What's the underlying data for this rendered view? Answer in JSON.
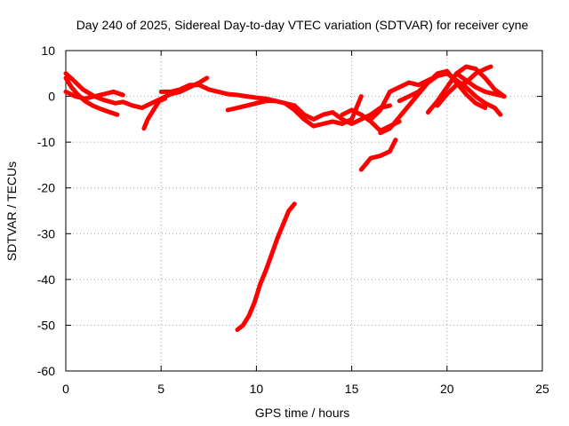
{
  "chart_data": {
    "type": "line",
    "title": "Day 240 of 2025, Sidereal Day-to-day VTEC variation (SDTVAR) for receiver cyne",
    "xlabel": "GPS time / hours",
    "ylabel": "SDTVAR / TECUs",
    "xlim": [
      0,
      25
    ],
    "ylim": [
      -60,
      10
    ],
    "xticks": [
      0,
      5,
      10,
      15,
      20,
      25
    ],
    "yticks": [
      -60,
      -50,
      -40,
      -30,
      -20,
      -10,
      0,
      10
    ],
    "grid": true,
    "color": "#ff0000",
    "series": [
      {
        "name": "s1",
        "x": [
          0.0,
          0.3,
          0.6,
          1.0,
          1.4,
          1.8,
          2.2,
          2.7
        ],
        "y": [
          4.0,
          2.0,
          0.5,
          -1.0,
          -2.0,
          -2.7,
          -3.3,
          -4.0
        ]
      },
      {
        "name": "s2",
        "x": [
          0.0,
          0.4,
          0.9,
          1.5,
          2.0,
          2.6,
          3.0,
          3.5,
          4.0,
          4.5,
          5.0,
          5.5
        ],
        "y": [
          5.0,
          3.5,
          1.5,
          0.0,
          -0.8,
          -1.5,
          -1.2,
          -2.0,
          -2.5,
          -1.5,
          -0.5,
          0.5
        ]
      },
      {
        "name": "s3",
        "x": [
          0.0,
          0.5,
          1.0,
          1.5,
          2.0,
          2.5,
          3.0
        ],
        "y": [
          1.0,
          0.0,
          -0.5,
          0.0,
          0.5,
          1.0,
          0.3
        ]
      },
      {
        "name": "s4",
        "x": [
          4.1,
          4.3,
          4.6,
          4.9,
          5.2
        ],
        "y": [
          -7.0,
          -5.0,
          -3.0,
          -1.0,
          -0.5
        ]
      },
      {
        "name": "s5",
        "x": [
          5.0,
          5.5,
          6.0,
          6.5,
          7.0,
          7.5,
          8.0,
          8.5,
          9.0,
          9.5,
          10.0,
          10.5,
          11.0,
          11.5,
          12.0
        ],
        "y": [
          1.0,
          1.0,
          1.5,
          2.5,
          2.5,
          1.5,
          1.0,
          0.5,
          0.3,
          0.0,
          -0.3,
          -0.5,
          -1.0,
          -1.5,
          -2.0
        ]
      },
      {
        "name": "s6",
        "x": [
          5.5,
          6.0,
          6.5,
          7.0,
          7.4
        ],
        "y": [
          0.5,
          1.0,
          2.0,
          3.0,
          4.0
        ]
      },
      {
        "name": "s7",
        "x": [
          8.5,
          9.0,
          9.5,
          10.0,
          10.5,
          11.0
        ],
        "y": [
          -3.0,
          -2.5,
          -2.0,
          -1.5,
          -1.0,
          -1.0
        ]
      },
      {
        "name": "s8",
        "x": [
          9.0,
          9.3,
          9.6,
          9.9,
          10.2,
          10.5,
          10.8,
          11.1,
          11.4,
          11.7,
          12.0
        ],
        "y": [
          -51.0,
          -50.0,
          -48.0,
          -45.0,
          -41.0,
          -38.0,
          -34.5,
          -31.0,
          -28.0,
          -25.0,
          -23.5
        ]
      },
      {
        "name": "s9",
        "x": [
          11.5,
          12.0,
          12.5,
          13.0,
          13.5,
          14.0,
          14.5,
          15.0,
          15.5
        ],
        "y": [
          -1.5,
          -3.0,
          -5.0,
          -6.5,
          -6.0,
          -5.5,
          -6.0,
          -5.0,
          0.0
        ]
      },
      {
        "name": "s10",
        "x": [
          12.0,
          12.5,
          13.0,
          13.5,
          14.0,
          14.5,
          15.0,
          15.5,
          16.0,
          16.5,
          17.0
        ],
        "y": [
          -2.0,
          -4.0,
          -5.0,
          -4.0,
          -3.5,
          -5.0,
          -6.0,
          -5.0,
          -4.0,
          -2.5,
          -2.0
        ]
      },
      {
        "name": "s11",
        "x": [
          14.5,
          15.0,
          15.5,
          16.0,
          16.5,
          17.0,
          17.5
        ],
        "y": [
          -4.0,
          -3.0,
          -4.0,
          -5.5,
          -7.5,
          -6.5,
          -5.5
        ]
      },
      {
        "name": "s12",
        "x": [
          15.5,
          16.0,
          16.5,
          17.0,
          17.3
        ],
        "y": [
          -16.0,
          -13.5,
          -13.0,
          -12.0,
          -9.5
        ]
      },
      {
        "name": "s13",
        "x": [
          16.5,
          17.0,
          17.5,
          18.0,
          18.5,
          19.0,
          19.5,
          20.0,
          20.5,
          21.0,
          21.5,
          22.0
        ],
        "y": [
          -8.0,
          -7.0,
          -4.5,
          -2.0,
          0.5,
          3.0,
          5.0,
          5.5,
          3.0,
          0.5,
          -1.5,
          -2.5
        ]
      },
      {
        "name": "s14",
        "x": [
          16.0,
          16.5,
          17.0,
          17.5,
          18.0,
          18.5,
          19.0,
          19.5,
          20.0
        ],
        "y": [
          -5.0,
          -3.0,
          1.0,
          2.0,
          3.0,
          2.5,
          3.5,
          4.5,
          5.0
        ]
      },
      {
        "name": "s15",
        "x": [
          17.5,
          18.0,
          18.5,
          19.0,
          19.5,
          20.0,
          20.5,
          21.0,
          21.5,
          22.0,
          22.5,
          22.8
        ],
        "y": [
          -1.0,
          0.0,
          1.0,
          3.0,
          4.5,
          5.0,
          3.5,
          2.0,
          0.0,
          -1.5,
          -2.5,
          -4.0
        ]
      },
      {
        "name": "s16",
        "x": [
          19.0,
          19.5,
          20.0,
          20.5,
          21.0,
          21.5,
          22.0,
          22.5,
          23.0
        ],
        "y": [
          -3.5,
          -1.0,
          2.0,
          5.0,
          6.5,
          6.0,
          4.0,
          1.5,
          0.0
        ]
      },
      {
        "name": "s17",
        "x": [
          20.5,
          21.0,
          21.5,
          22.0,
          22.5,
          23.0
        ],
        "y": [
          5.0,
          3.5,
          2.0,
          1.0,
          0.5,
          0.0
        ]
      },
      {
        "name": "s18",
        "x": [
          19.5,
          20.0,
          20.5,
          21.0,
          21.5,
          22.0,
          22.3
        ],
        "y": [
          -2.0,
          0.5,
          2.5,
          3.0,
          5.0,
          6.0,
          6.5
        ]
      }
    ]
  }
}
